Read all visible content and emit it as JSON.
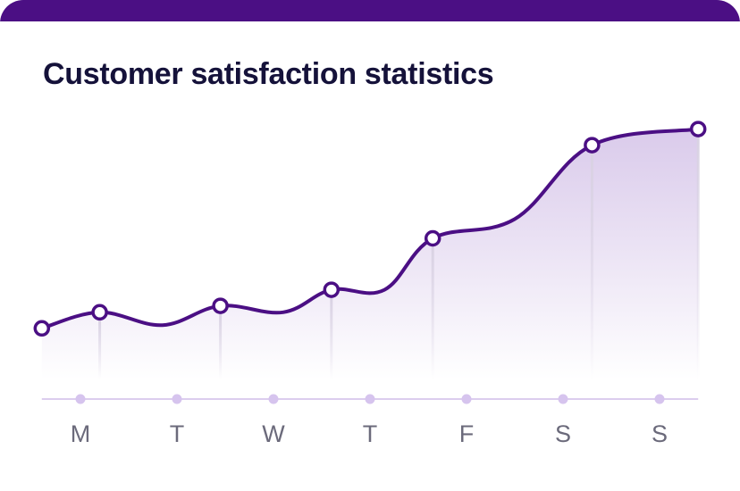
{
  "title": "Customer satisfaction statistics",
  "colors": {
    "accent": "#4b0f84",
    "area_top": "#d8c8ea",
    "marker_fill": "#ffffff",
    "axis": "#dccdee",
    "axis_dot": "#d6c4ee",
    "drop_line": "#d9d2e3",
    "tick_text": "#6b6a7b",
    "title_text": "#15123a"
  },
  "chart_data": {
    "type": "area",
    "title": "Customer satisfaction statistics",
    "xlabel": "",
    "ylabel": "",
    "categories": [
      "M",
      "T",
      "W",
      "T",
      "F",
      "S",
      "S"
    ],
    "x_range": [
      -0.4,
      6.4
    ],
    "ylim": [
      0,
      100
    ],
    "grid": false,
    "legend": "none",
    "line_points": [
      {
        "x": -0.4,
        "y": 22
      },
      {
        "x": 0.2,
        "y": 27
      },
      {
        "x": 0.85,
        "y": 23
      },
      {
        "x": 1.45,
        "y": 29
      },
      {
        "x": 2.1,
        "y": 27
      },
      {
        "x": 2.6,
        "y": 34
      },
      {
        "x": 3.15,
        "y": 34
      },
      {
        "x": 3.65,
        "y": 50
      },
      {
        "x": 4.5,
        "y": 56
      },
      {
        "x": 5.3,
        "y": 79
      },
      {
        "x": 6.4,
        "y": 84
      }
    ],
    "markers": [
      {
        "x": -0.4,
        "y": 22
      },
      {
        "x": 0.2,
        "y": 27
      },
      {
        "x": 1.45,
        "y": 29
      },
      {
        "x": 2.6,
        "y": 34
      },
      {
        "x": 3.65,
        "y": 50
      },
      {
        "x": 5.3,
        "y": 79
      },
      {
        "x": 6.4,
        "y": 84
      }
    ]
  }
}
